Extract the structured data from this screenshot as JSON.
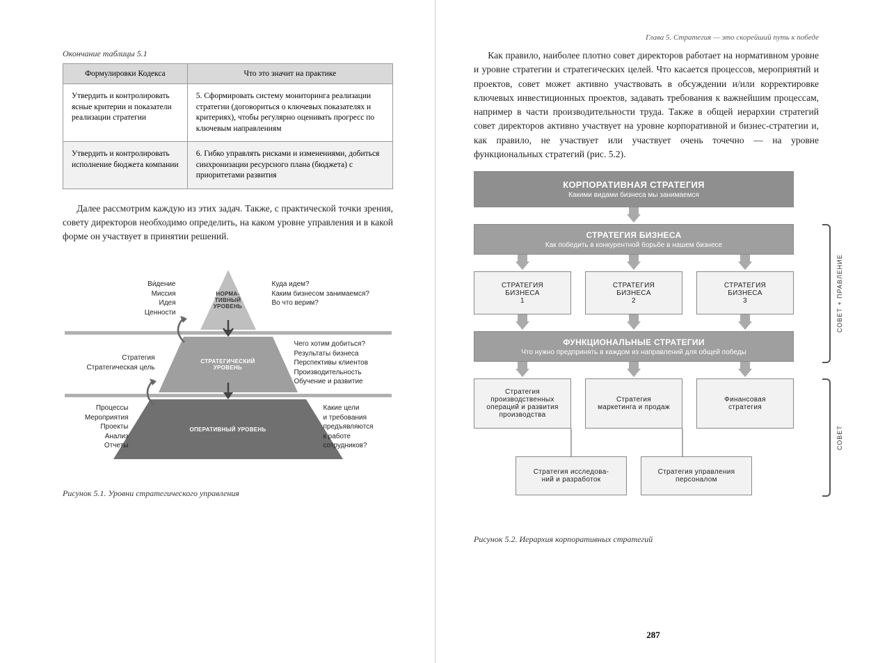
{
  "colors": {
    "grey_dark": "#8f8f8f",
    "grey_mid": "#9f9f9f",
    "grey_light": "#d9d9d9",
    "grey_lighter": "#f1f1f1",
    "border": "#999999",
    "band": "#b0b0b0",
    "text": "#222222"
  },
  "left": {
    "table_caption": "Окончание таблицы 5.1",
    "table": {
      "headers": [
        "Формулировки Кодекса",
        "Что это значит на практике"
      ],
      "rows": [
        [
          "Утвердить и контролировать ясные критерии и показатели реализации стратегии",
          "5. Сформировать систему мониторинга реализации стратегии (договориться о ключевых показателях и критериях), чтобы регулярно оценивать прогресс по ключевым направлениям"
        ],
        [
          "Утвердить и контролировать исполнение бюджета компании",
          "6. Гибко управлять рисками и изменениями, добиться синхронизации ресурсного плана (бюджета) с приоритетами развития"
        ]
      ]
    },
    "para": "Далее рассмотрим каждую из этих задач. Также, с практической точки зрения, совету директоров необходимо определить, на каком уровне управления и в какой форме он участвует в принятии решений.",
    "pyramid": {
      "type": "pyramid-diagram",
      "tiers": [
        {
          "label": "НОРМА-\nТИВНЫЙ\nУРОВЕНЬ",
          "fill": "#bfbfbf",
          "text_color": "#333"
        },
        {
          "label": "СТРАТЕГИЧЕСКИЙ\nУРОВЕНЬ",
          "fill": "#9f9f9f",
          "text_color": "#fff"
        },
        {
          "label": "ОПЕРАТИВНЫЙ УРОВЕНЬ",
          "fill": "#707070",
          "text_color": "#fff"
        }
      ],
      "left_labels": [
        "Ви́дение\nМиссия\nИдея\nЦенности",
        "Стратегия\nСтратегическая цель",
        "Процессы\nМероприятия\nПроекты\nАнализ\nОтчеты"
      ],
      "right_labels": [
        "Куда идем?\nКаким бизнесом занимаемся?\nВо что верим?",
        "Чего хотим добиться?\nРезультаты бизнеса\nПерспективы клиентов\nПроизводительность\nОбучение и развитие",
        "Какие цели\nи требования\nпредъявляются\nк работе\nсотрудников?"
      ]
    },
    "fig_caption": "Рисунок 5.1. Уровни стратегического управления"
  },
  "right": {
    "running_head": "Глава 5. Стратегия — это скорейший путь к победе",
    "para": "Как правило, наиболее плотно совет директоров работает на нормативном уровне и уровне стратегии и стратегических целей. Что касается процессов, мероприятий и проектов, совет может активно участвовать в обсуждении и/или корректировке ключевых инвестиционных проектов, задавать требования к важнейшим процессам, например в части производительности труда. Также в общей иерархии стратегий совет директоров активно участвует на уровне корпоративной и бизнес-стратегии и, как правило, не участвует или участвует очень точечно — на уровне функциональных стратегий (рис. 5.2).",
    "hierarchy": {
      "type": "flowchart",
      "level1": {
        "title": "КОРПОРАТИВНАЯ СТРАТЕГИЯ",
        "sub": "Какими видами бизнеса мы занимаемся"
      },
      "level2": {
        "title": "СТРАТЕГИЯ БИЗНЕСА",
        "sub": "Как победить в конкурентной борьбе в нашем бизнесе"
      },
      "level2_children": [
        "СТРАТЕГИЯ\nБИЗНЕСА\n1",
        "СТРАТЕГИЯ\nБИЗНЕСА\n2",
        "СТРАТЕГИЯ\nБИЗНЕСА\n3"
      ],
      "level3": {
        "title": "ФУНКЦИОНАЛЬНЫЕ СТРАТЕГИИ",
        "sub": "Что нужно предпринять в каждом из направлений для общей победы"
      },
      "level3_children_row1": [
        "Стратегия\nпроизводственных\nопераций и развития\nпроизводства",
        "Стратегия\nмаркетинга и продаж",
        "Финансовая\nстратегия"
      ],
      "level3_children_row2": [
        "Стратегия исследова-\nний и разработок",
        "Стратегия управления\nперсоналом"
      ],
      "brace_upper": "СОВЕТ + ПРАВЛЕНИЕ",
      "brace_lower": "СОВЕТ"
    },
    "fig_caption": "Рисунок 5.2. Иерархия корпоративных стратегий",
    "page_num": "287"
  }
}
